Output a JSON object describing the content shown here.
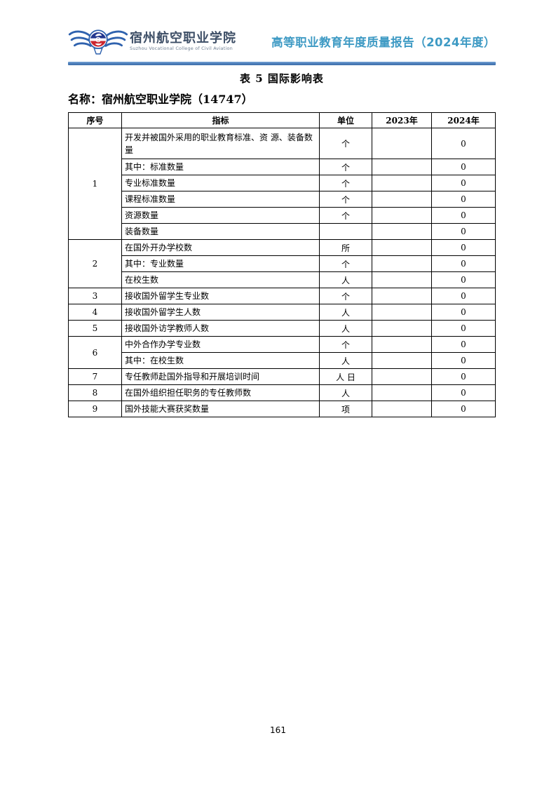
{
  "header": {
    "college_name": "宿州航空职业学院",
    "college_name_en": "Suzhou Vocational College of Civil Aviation",
    "report_title": "高等职业教育年度质量报告（2024年度）",
    "accent_rule_color": "#4f81bd",
    "report_title_color": "#3e9ac4",
    "college_name_color": "#3d4e66",
    "logo_icon": "winged-aviation-emblem"
  },
  "table_title": "表 5  国际影响表",
  "name_line": "名称：宿州航空职业学院（14747）",
  "footer": {
    "page_number": "161"
  },
  "table": {
    "columns": [
      "序号",
      "指标",
      "单位",
      "2023年",
      "2024年"
    ],
    "rows": [
      {
        "serial": "1",
        "rowspan": 6,
        "tall": true,
        "indicator": "开发并被国外采用的职业教育标准、资 源、装备数量",
        "unit": "个",
        "y2023": "",
        "y2024": "0"
      },
      {
        "indicator": "其中：标准数量",
        "unit": "个",
        "y2023": "",
        "y2024": "0"
      },
      {
        "indicator": "专业标准数量",
        "unit": "个",
        "y2023": "",
        "y2024": "0"
      },
      {
        "indicator": "课程标准数量",
        "unit": "个",
        "y2023": "",
        "y2024": "0"
      },
      {
        "indicator": "资源数量",
        "unit": "个",
        "y2023": "",
        "y2024": "0"
      },
      {
        "indicator": "装备数量",
        "unit": "",
        "y2023": "",
        "y2024": "0"
      },
      {
        "serial": "2",
        "rowspan": 3,
        "indicator": "在国外开办学校数",
        "unit": "所",
        "y2023": "",
        "y2024": "0"
      },
      {
        "indicator": "其中：专业数量",
        "unit": "个",
        "y2023": "",
        "y2024": "0"
      },
      {
        "indicator": "在校生数",
        "unit": "人",
        "y2023": "",
        "y2024": "0"
      },
      {
        "serial": "3",
        "rowspan": 1,
        "indicator": "接收国外留学生专业数",
        "unit": "个",
        "y2023": "",
        "y2024": "0"
      },
      {
        "serial": "4",
        "rowspan": 1,
        "indicator": "接收国外留学生人数",
        "unit": "人",
        "y2023": "",
        "y2024": "0"
      },
      {
        "serial": "5",
        "rowspan": 1,
        "indicator": "接收国外访学教师人数",
        "unit": "人",
        "y2023": "",
        "y2024": "0"
      },
      {
        "serial": "6",
        "rowspan": 2,
        "indicator": "中外合作办学专业数",
        "unit": "个",
        "y2023": "",
        "y2024": "0"
      },
      {
        "indicator": "其中：在校生数",
        "unit": "人",
        "y2023": "",
        "y2024": "0"
      },
      {
        "serial": "7",
        "rowspan": 1,
        "indicator": "专任教师赴国外指导和开展培训时间",
        "unit": "人 日",
        "y2023": "",
        "y2024": "0"
      },
      {
        "serial": "8",
        "rowspan": 1,
        "indicator": "在国外组织担任职务的专任教师数",
        "unit": "人",
        "y2023": "",
        "y2024": "0"
      },
      {
        "serial": "9",
        "rowspan": 1,
        "indicator": "国外技能大赛获奖数量",
        "unit": "项",
        "y2023": "",
        "y2024": "0"
      }
    ]
  }
}
